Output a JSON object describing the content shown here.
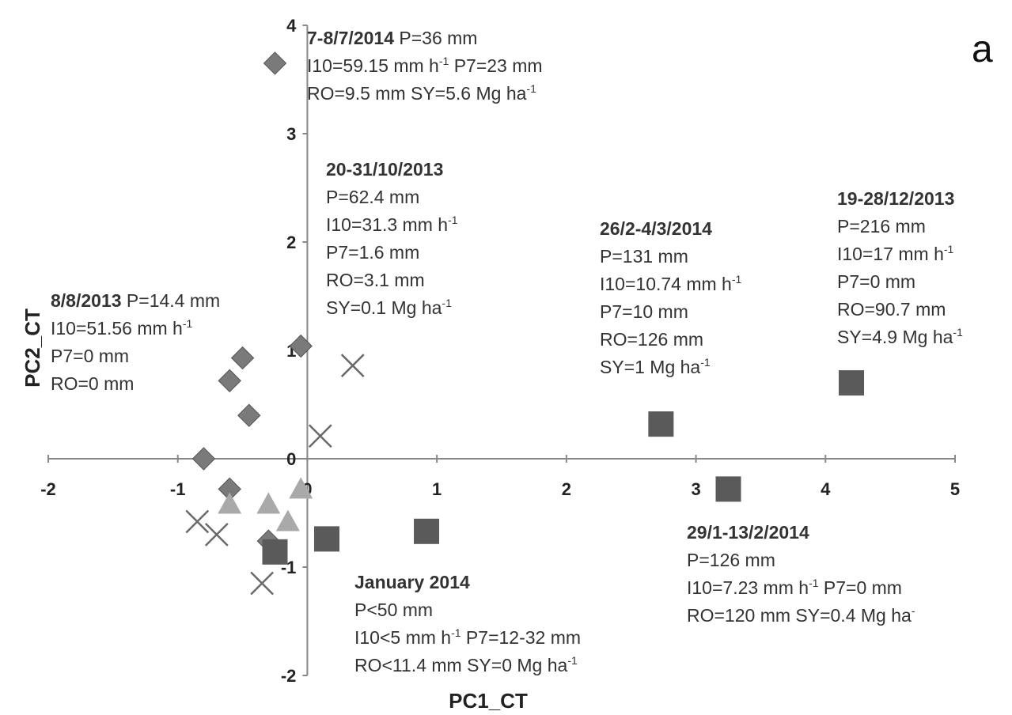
{
  "chart_data": {
    "type": "scatter",
    "panel_label": "a",
    "xlabel": "PC1_CT",
    "ylabel": "PC2_CT",
    "xlim": [
      -2,
      5
    ],
    "ylim": [
      -2,
      4
    ],
    "x_ticks": [
      "-2",
      "-1",
      "0",
      "1",
      "2",
      "3",
      "4",
      "5"
    ],
    "y_ticks": [
      "-2",
      "-1",
      "0",
      "1",
      "2",
      "3",
      "4"
    ],
    "grid": false,
    "legend": "none",
    "series": [
      {
        "marker": "diamond",
        "color": "#7a7a7a",
        "points": [
          {
            "x": -0.25,
            "y": 3.65
          },
          {
            "x": -0.05,
            "y": 1.04
          },
          {
            "x": -0.5,
            "y": 0.93
          },
          {
            "x": -0.6,
            "y": 0.72
          },
          {
            "x": -0.45,
            "y": 0.4
          },
          {
            "x": -0.8,
            "y": 0.0
          },
          {
            "x": -0.6,
            "y": -0.28
          },
          {
            "x": -0.3,
            "y": -0.76
          }
        ]
      },
      {
        "marker": "cross",
        "color": "#6a6a6a",
        "points": [
          {
            "x": 0.35,
            "y": 0.86
          },
          {
            "x": 0.1,
            "y": 0.21
          },
          {
            "x": -0.85,
            "y": -0.58
          },
          {
            "x": -0.7,
            "y": -0.7
          },
          {
            "x": -0.35,
            "y": -1.15
          }
        ]
      },
      {
        "marker": "triangle",
        "color": "#a9a9a9",
        "points": [
          {
            "x": -0.6,
            "y": -0.42
          },
          {
            "x": -0.3,
            "y": -0.42
          },
          {
            "x": -0.05,
            "y": -0.28
          },
          {
            "x": -0.15,
            "y": -0.58
          }
        ]
      },
      {
        "marker": "square",
        "color": "#5a5a5a",
        "points": [
          {
            "x": 4.2,
            "y": 0.7
          },
          {
            "x": 2.73,
            "y": 0.32
          },
          {
            "x": 3.25,
            "y": -0.28
          },
          {
            "x": 0.92,
            "y": -0.67
          },
          {
            "x": 0.15,
            "y": -0.74
          },
          {
            "x": -0.25,
            "y": -0.86
          }
        ]
      }
    ],
    "annotations": [
      {
        "lines": [
          [
            "7-8/7/2014",
            " P=36 mm"
          ],
          [
            "",
            "I10=59.15 mm h",
            "-1",
            " P7=23 mm"
          ],
          [
            "",
            "RO=9.5 mm SY=5.6 Mg ha",
            "-1"
          ]
        ]
      },
      {
        "lines": [
          [
            "20-31/10/2013"
          ],
          [
            "",
            "P=62.4 mm"
          ],
          [
            "",
            "I10=31.3 mm h",
            "-1"
          ],
          [
            "",
            "P7=1.6 mm"
          ],
          [
            "",
            "RO=3.1 mm"
          ],
          [
            "",
            "SY=0.1 Mg ha",
            "-1"
          ]
        ]
      },
      {
        "lines": [
          [
            "26/2-4/3/2014"
          ],
          [
            "",
            "P=131 mm"
          ],
          [
            "",
            "I10=10.74 mm h",
            "-1"
          ],
          [
            "",
            "P7=10 mm"
          ],
          [
            "",
            "RO=126 mm"
          ],
          [
            "",
            "SY=1 Mg ha",
            "-1"
          ]
        ]
      },
      {
        "lines": [
          [
            "19-28/12/2013"
          ],
          [
            "",
            "P=216 mm"
          ],
          [
            "",
            "I10=17 mm h",
            "-1"
          ],
          [
            "",
            "P7=0 mm"
          ],
          [
            "",
            "RO=90.7 mm"
          ],
          [
            "",
            "SY=4.9 Mg ha",
            "-1"
          ]
        ]
      },
      {
        "lines": [
          [
            "8/8/2013",
            " P=14.4 mm"
          ],
          [
            "",
            "I10=51.56 mm h",
            "-1"
          ],
          [
            "",
            "P7=0 mm"
          ],
          [
            "",
            "RO=0 mm"
          ]
        ]
      },
      {
        "lines": [
          [
            "29/1-13/2/2014"
          ],
          [
            "",
            "P=126 mm"
          ],
          [
            "",
            "I10=7.23 mm h",
            "-1",
            " P7=0 mm"
          ],
          [
            "",
            "RO=120 mm SY=0.4 Mg ha",
            "-"
          ]
        ]
      },
      {
        "lines": [
          [
            "January 2014"
          ],
          [
            "",
            "P<50 mm"
          ],
          [
            "",
            "I10<5 mm h",
            "-1",
            " P7=12-32 mm"
          ],
          [
            "",
            "RO<11.4 mm SY=0 Mg ha",
            "-1"
          ]
        ]
      }
    ]
  }
}
